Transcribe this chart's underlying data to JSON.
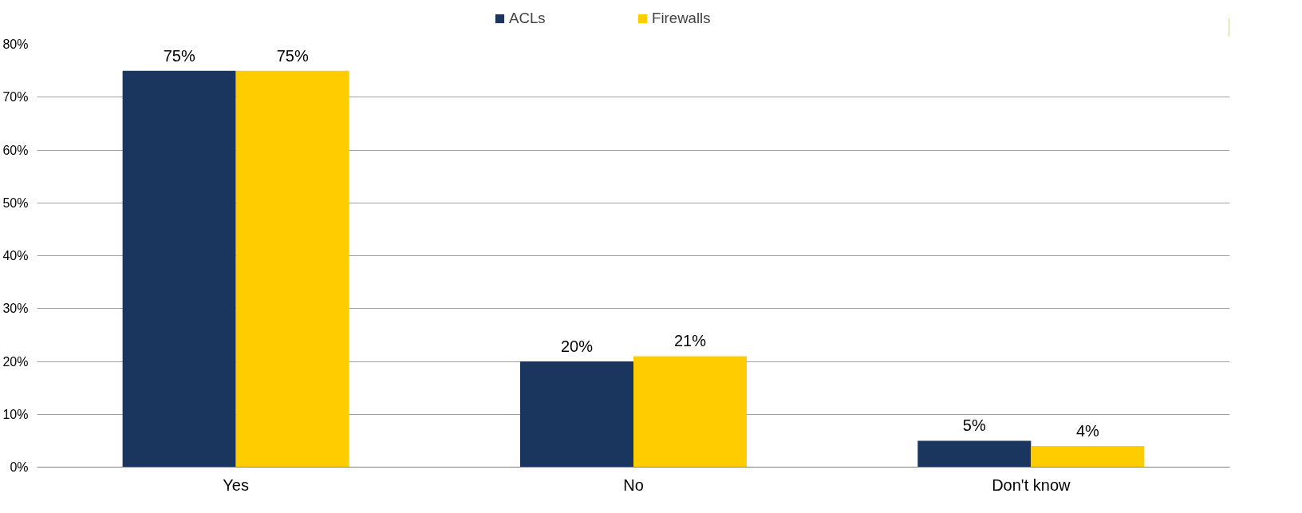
{
  "chart_data": {
    "type": "bar",
    "categories": [
      "Yes",
      "No",
      "Don't know"
    ],
    "series": [
      {
        "name": "ACLs",
        "color": "#1a365e",
        "values": [
          75,
          20,
          5
        ],
        "value_labels": [
          "75%",
          "20%",
          "5%"
        ]
      },
      {
        "name": "Firewalls",
        "color": "#ffcc00",
        "values": [
          75,
          21,
          4
        ],
        "value_labels": [
          "75%",
          "21%",
          "4%"
        ]
      }
    ],
    "ylim": [
      0,
      80
    ],
    "yticks": [
      {
        "value": 0,
        "label": "0%"
      },
      {
        "value": 10,
        "label": "10%"
      },
      {
        "value": 20,
        "label": "20%"
      },
      {
        "value": 30,
        "label": "30%"
      },
      {
        "value": 40,
        "label": "40%"
      },
      {
        "value": 50,
        "label": "50%"
      },
      {
        "value": 60,
        "label": "60%"
      },
      {
        "value": 70,
        "label": "70%"
      },
      {
        "value": 80,
        "label": "80%"
      }
    ],
    "grid": "y",
    "legend": "top"
  }
}
